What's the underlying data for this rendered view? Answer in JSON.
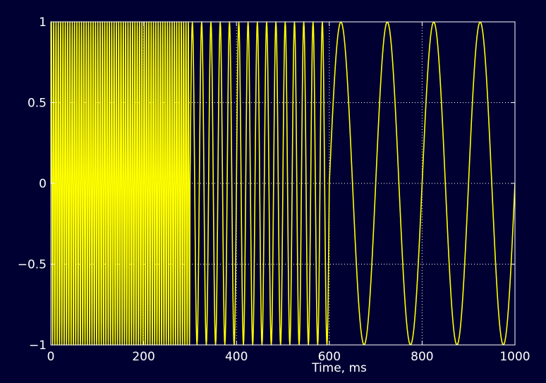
{
  "chart_data": {
    "type": "line",
    "title": "",
    "xlabel": "Time, ms",
    "ylabel": "",
    "xlim": [
      0,
      1000
    ],
    "ylim": [
      -1,
      1
    ],
    "x_ticks": [
      0,
      200,
      400,
      600,
      800,
      1000
    ],
    "x_tick_labels": [
      "0",
      "200",
      "400",
      "600",
      "800",
      "1000"
    ],
    "y_ticks": [
      -1,
      -0.5,
      0,
      0.5,
      1
    ],
    "y_tick_labels": [
      "−1",
      "−0.5",
      "0",
      "0.5",
      "1"
    ],
    "grid": true,
    "grid_style": "dotted",
    "colors": {
      "figure_background": "#000033",
      "axes_background": "#000033",
      "axes_line": "#ffffff",
      "grid": "#ffffff",
      "series": "#ffff00"
    },
    "series": [
      {
        "segments": [
          {
            "x_start": 0,
            "x_end": 300,
            "frequency_hz": 200,
            "amplitude": 1
          },
          {
            "x_start": 300,
            "x_end": 600,
            "frequency_hz": 50,
            "amplitude": 1
          },
          {
            "x_start": 600,
            "x_end": 1000,
            "frequency_hz": 10,
            "amplitude": 1
          }
        ]
      }
    ]
  }
}
